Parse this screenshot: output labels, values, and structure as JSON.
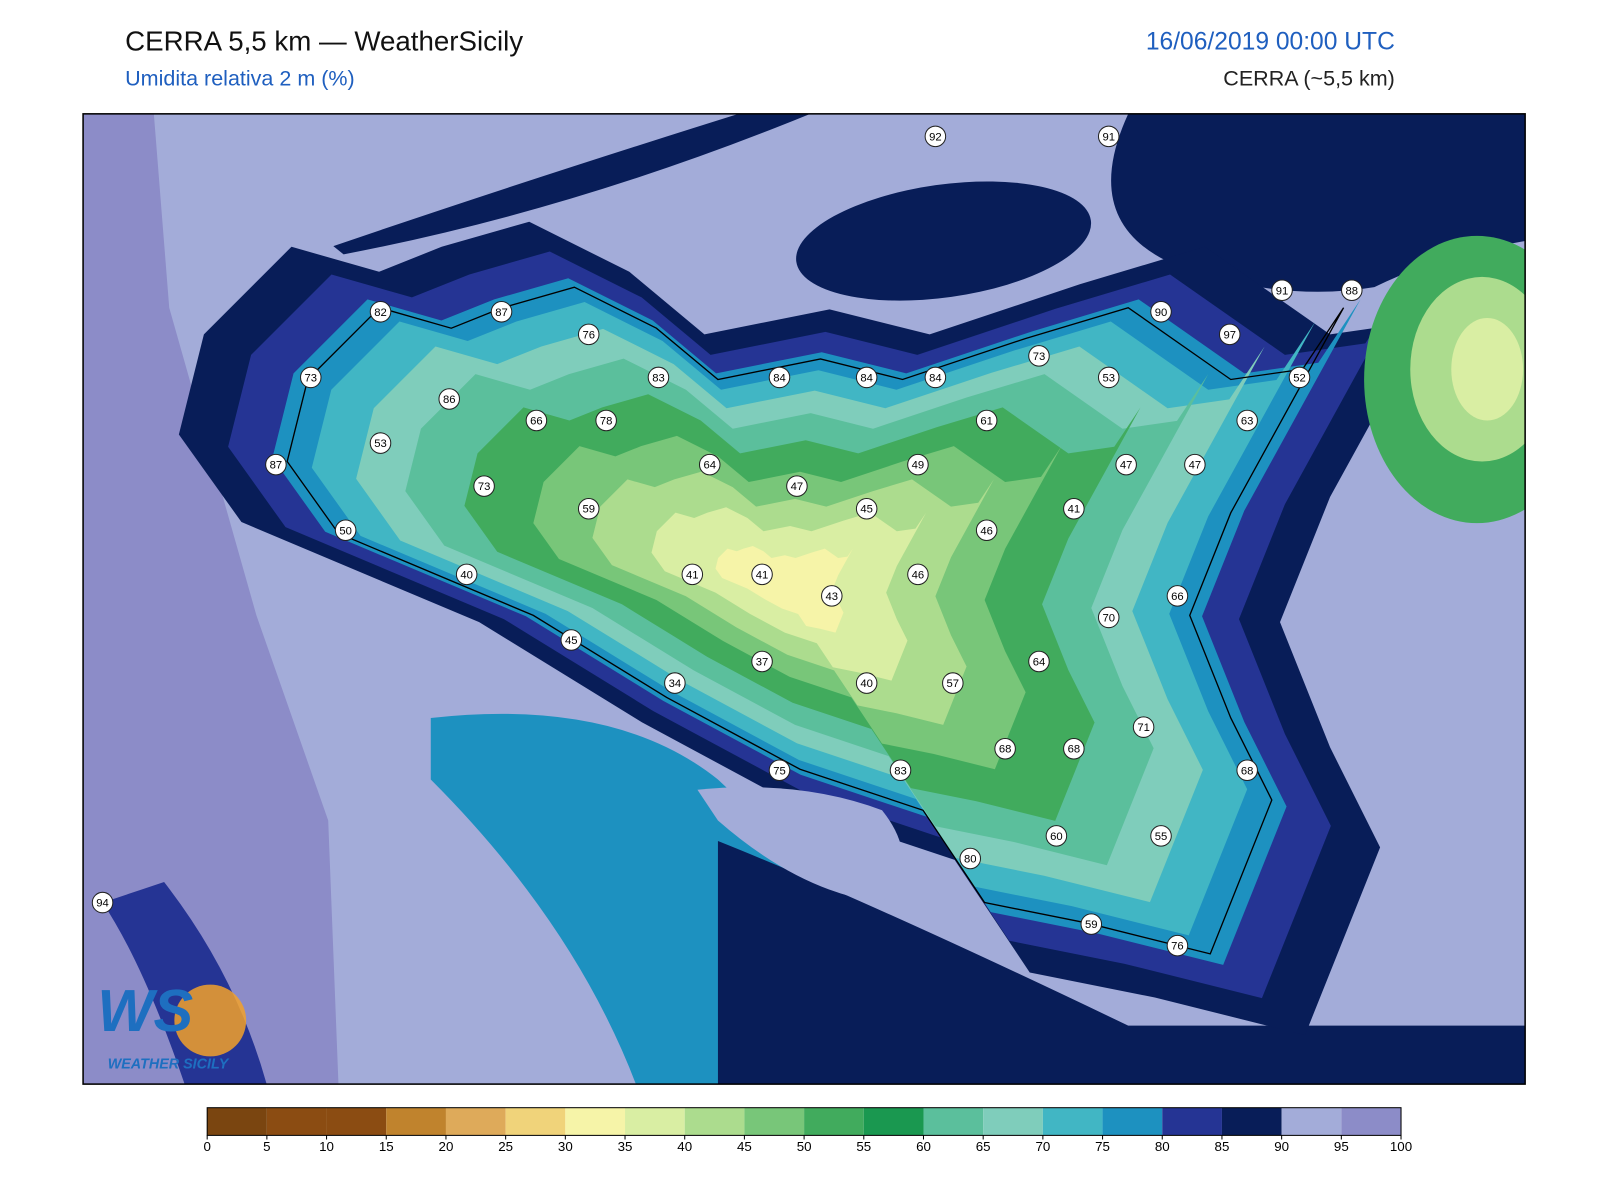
{
  "header": {
    "title": "CERRA 5,5 km — WeatherSicily",
    "subtitle": "Umidita relativa 2 m (%)",
    "datetime": "16/06/2019 00:00 UTC",
    "model": "CERRA (~5,5 km)"
  },
  "stations": [
    92,
    91,
    82,
    87,
    76,
    90,
    91,
    88,
    97,
    73,
    86,
    83,
    84,
    84,
    84,
    73,
    53,
    52,
    66,
    78,
    53,
    61,
    63,
    87,
    64,
    49,
    47,
    47,
    73,
    47,
    59,
    45,
    41,
    50,
    46,
    40,
    41,
    41,
    43,
    46,
    66,
    70,
    45,
    37,
    64,
    34,
    40,
    57,
    71,
    68,
    68,
    68,
    75,
    83,
    60,
    55,
    80,
    94,
    59,
    76
  ],
  "colorbar": {
    "ticks": [
      0,
      5,
      10,
      15,
      20,
      25,
      30,
      35,
      40,
      45,
      50,
      55,
      60,
      65,
      70,
      75,
      80,
      85,
      90,
      95,
      100
    ],
    "colors": [
      "#7a4510",
      "#8b4c12",
      "#8b4c12",
      "#c0832d",
      "#deaa5a",
      "#f0d37a",
      "#f6f4a8",
      "#d9eea3",
      "#acdc8e",
      "#78c679",
      "#41ab5d",
      "#1a9850",
      "#5bbf9c",
      "#7fcdbb",
      "#41b6c4",
      "#1d91c0",
      "#253494",
      "#081d58",
      "#a3acd9",
      "#8c8cc8"
    ]
  },
  "logo": {
    "mark": "WS",
    "text": "WEATHER SICILY"
  }
}
